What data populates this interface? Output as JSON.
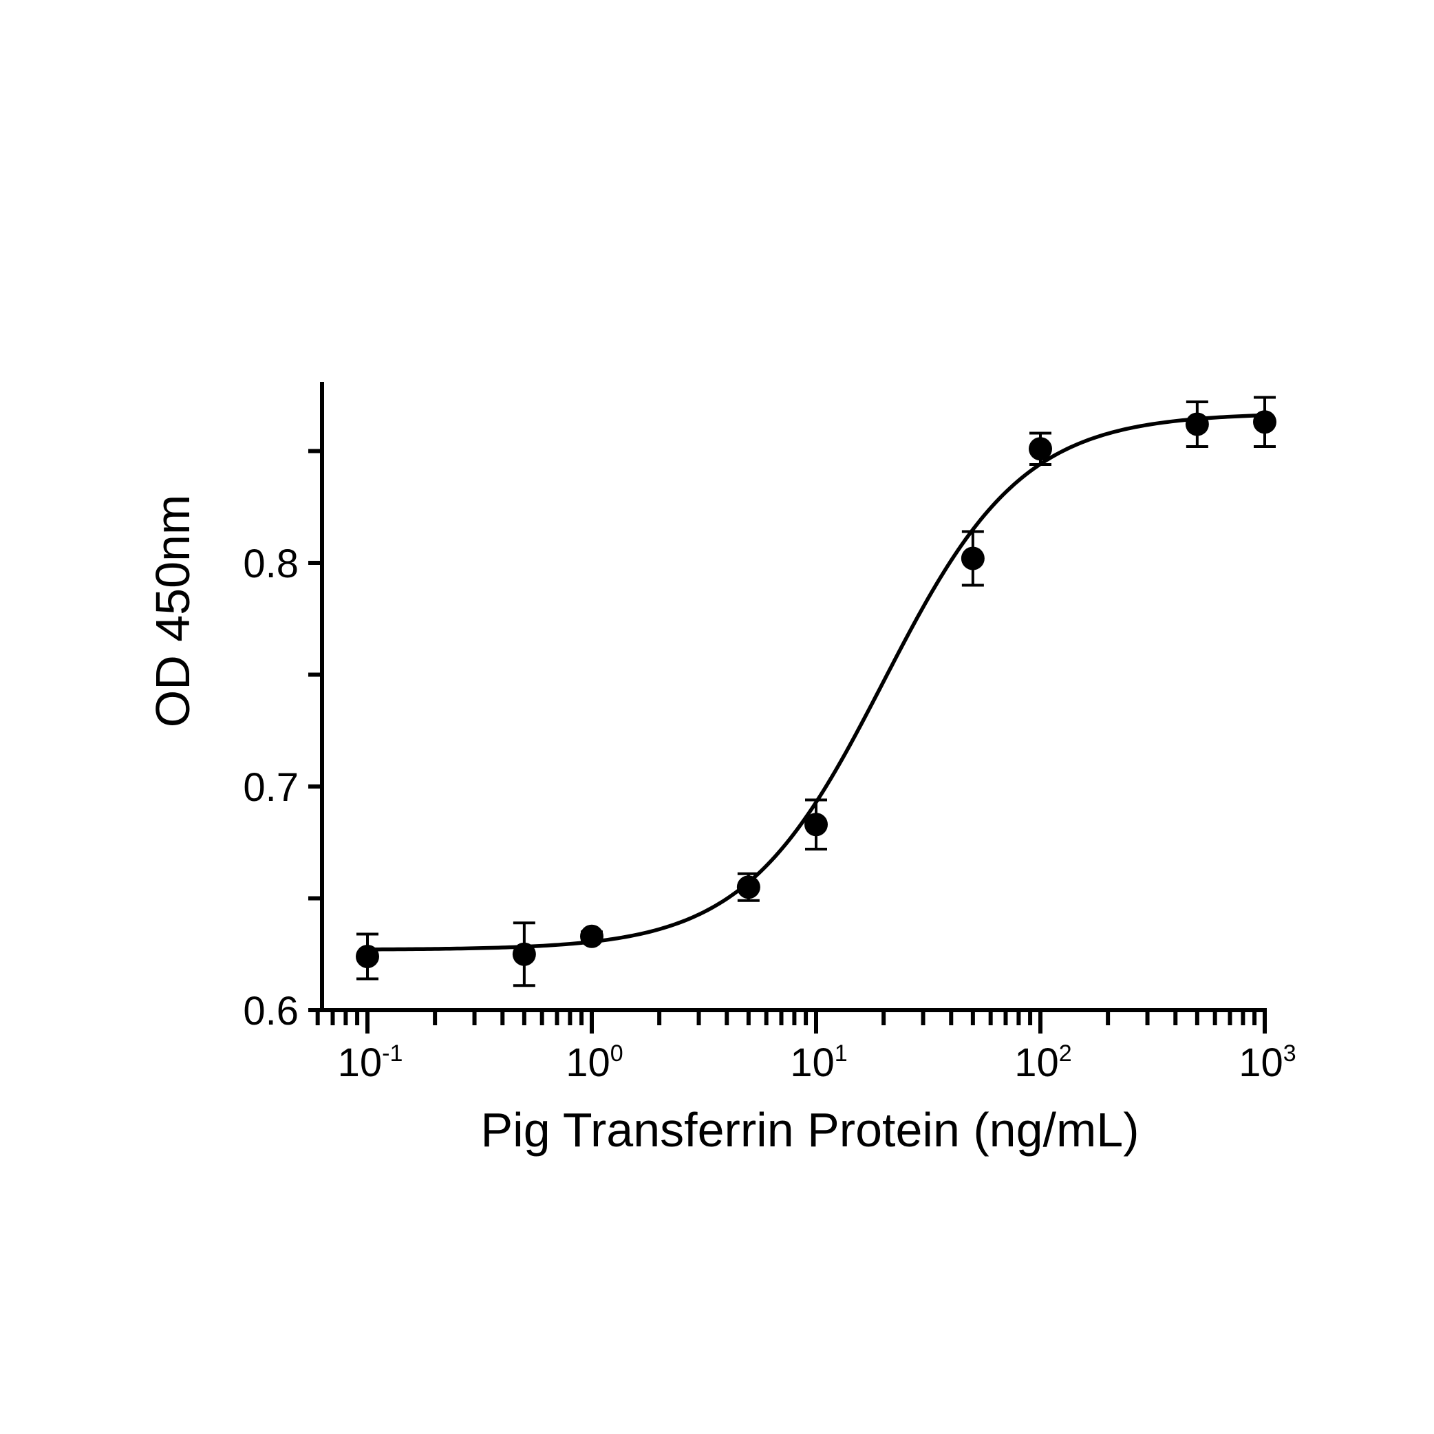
{
  "chart_data": {
    "type": "scatter",
    "title": "",
    "xlabel": "Pig Transferrin Protein (ng/mL)",
    "ylabel": "OD 450nm",
    "x_scale": "log",
    "xlim": [
      0.06,
      1000
    ],
    "ylim": [
      0.6,
      0.88
    ],
    "x_major_ticks": [
      0.1,
      1,
      10,
      100,
      1000
    ],
    "x_tick_labels": [
      {
        "base": "10",
        "exp": "-1"
      },
      {
        "base": "10",
        "exp": "0"
      },
      {
        "base": "10",
        "exp": "1"
      },
      {
        "base": "10",
        "exp": "2"
      },
      {
        "base": "10",
        "exp": "3"
      }
    ],
    "y_major_ticks": [
      0.6,
      0.7,
      0.8
    ],
    "y_tick_labels": [
      "0.6",
      "0.7",
      "0.8"
    ],
    "y_minor_ticks": [
      0.65,
      0.75,
      0.85
    ],
    "grid": false,
    "series": [
      {
        "x": [
          0.1,
          0.5,
          1,
          5,
          10,
          50,
          100,
          500,
          1000
        ],
        "y": [
          0.624,
          0.625,
          0.633,
          0.655,
          0.683,
          0.802,
          0.851,
          0.862,
          0.863
        ],
        "error": [
          0.01,
          0.014,
          0.002,
          0.006,
          0.011,
          0.012,
          0.007,
          0.01,
          0.011
        ]
      }
    ],
    "fit_curve": {
      "type": "4PL",
      "bottom": 0.627,
      "top": 0.867,
      "ec50": 20,
      "hill": 1.4
    },
    "colors": {
      "marker": "#000000",
      "line": "#000000",
      "background": "#ffffff"
    }
  }
}
